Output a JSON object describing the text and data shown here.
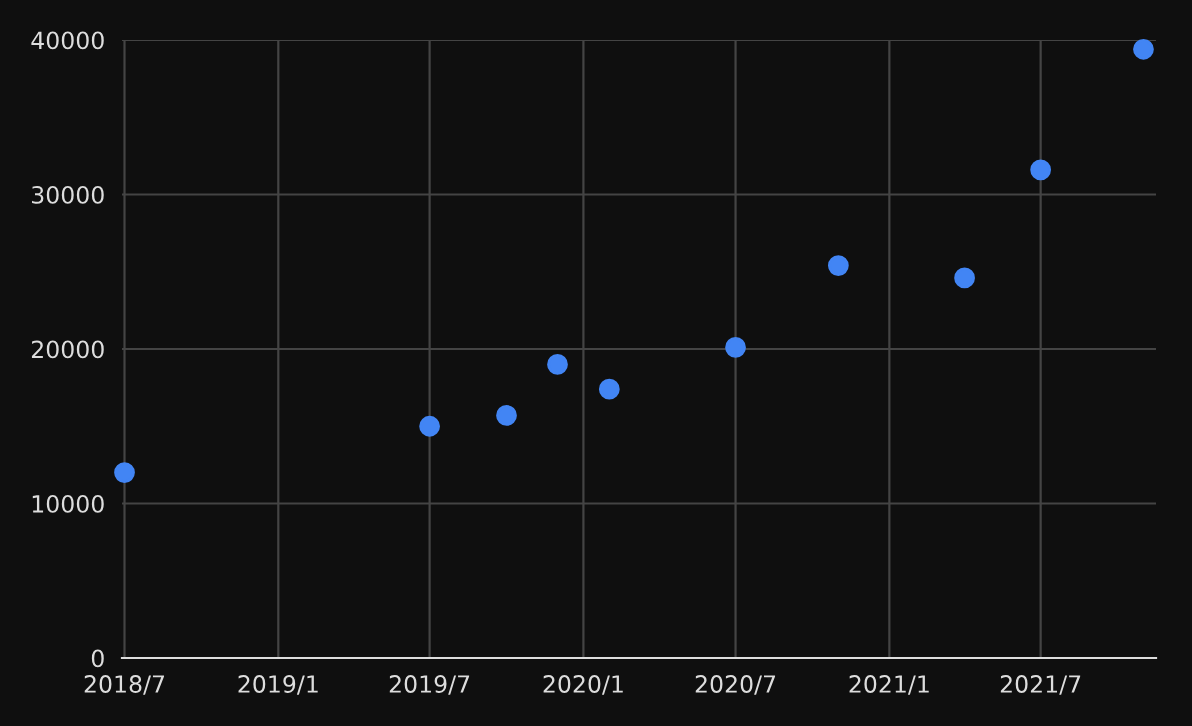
{
  "chart_data": {
    "type": "scatter",
    "x": [
      "2018-07-01",
      "2019-07-01",
      "2019-10-01",
      "2019-12-01",
      "2020-02-01",
      "2020-07-01",
      "2020-11-01",
      "2021-04-01",
      "2021-07-01",
      "2021-11-01"
    ],
    "values": [
      12000,
      15000,
      15700,
      19000,
      17400,
      20100,
      25400,
      24600,
      31600,
      39400
    ],
    "color": "#4285f4",
    "marker": "circle",
    "grid": true,
    "xlim": [
      "2018-06-28",
      "2021-11-16"
    ],
    "xticks": [
      {
        "value": "2018-07-01",
        "label": "2018/7"
      },
      {
        "value": "2019-01-01",
        "label": "2019/1"
      },
      {
        "value": "2019-07-01",
        "label": "2019/7"
      },
      {
        "value": "2020-01-01",
        "label": "2020/1"
      },
      {
        "value": "2020-07-01",
        "label": "2020/7"
      },
      {
        "value": "2021-01-01",
        "label": "2021/1"
      },
      {
        "value": "2021-07-01",
        "label": "2021/7"
      }
    ],
    "ylim": [
      0,
      40000
    ],
    "yticks": [
      0,
      10000,
      20000,
      30000,
      40000
    ]
  }
}
